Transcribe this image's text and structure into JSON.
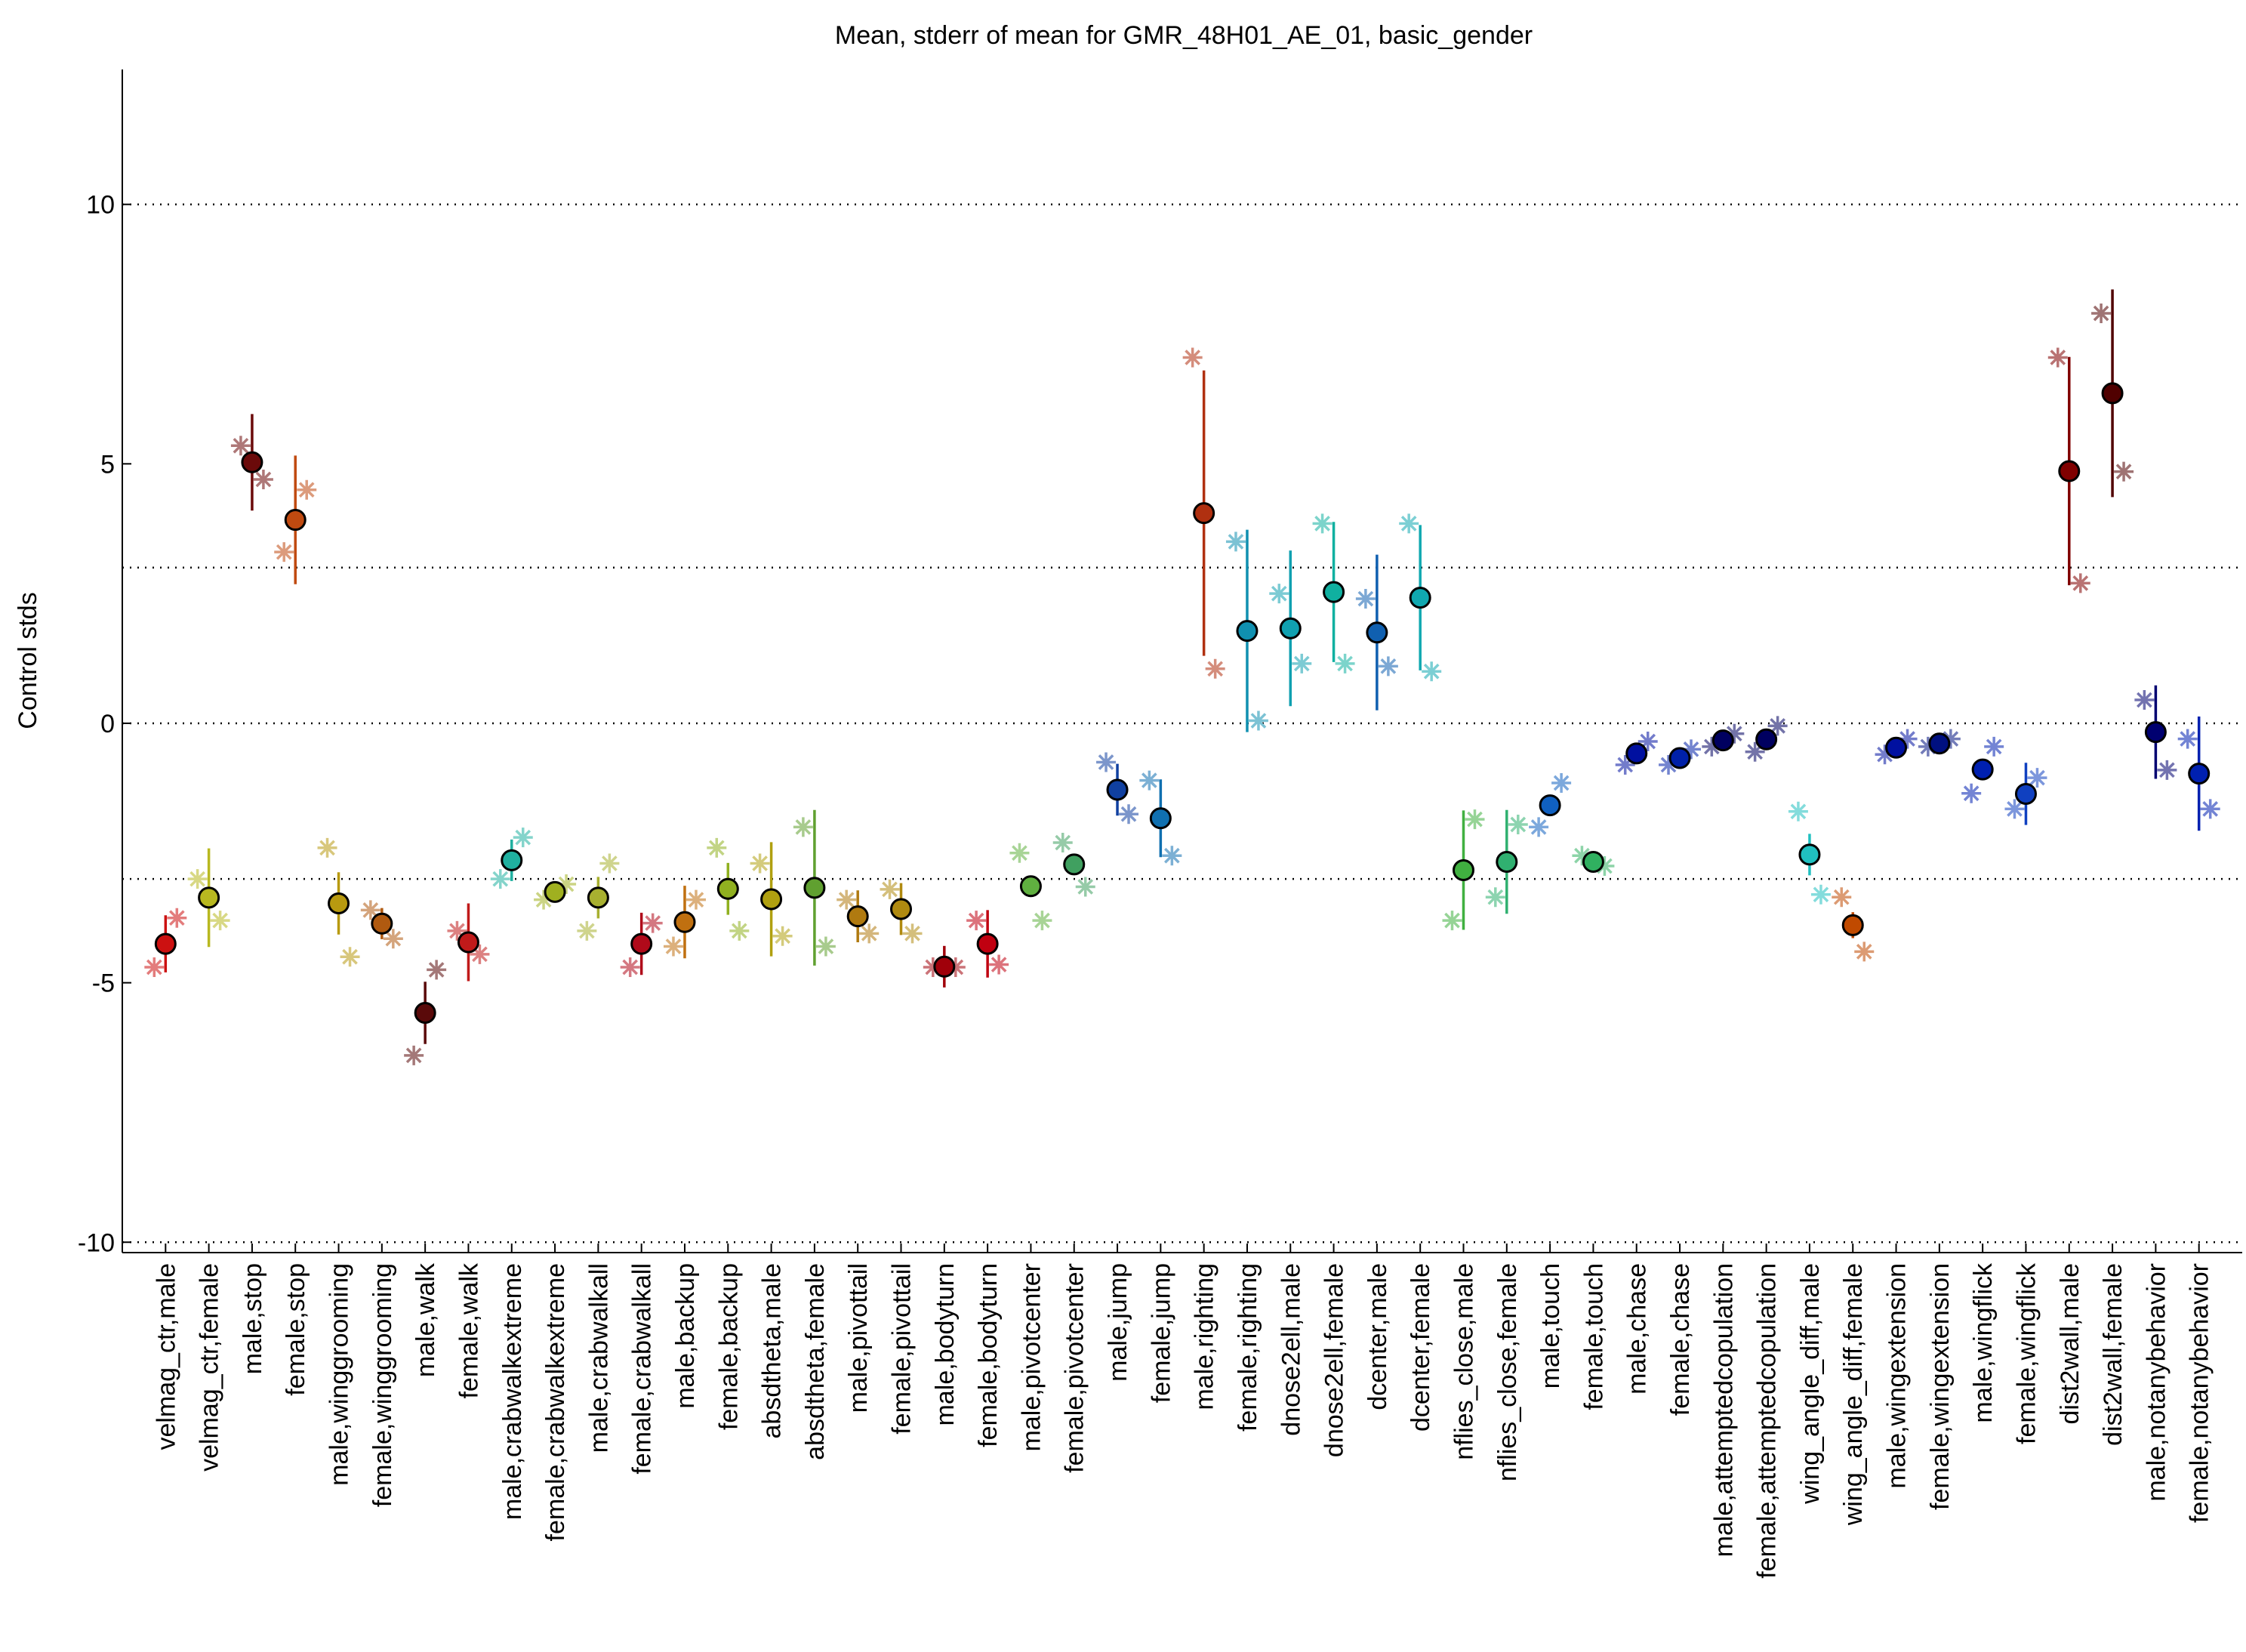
{
  "chart_data": {
    "type": "errorbar",
    "title": "Mean, stderr of mean for GMR_48H01_AE_01, basic_gender",
    "ylabel": "Control stds",
    "categories": [
      "velmag_ctr,male",
      "velmag_ctr,female",
      "male,stop",
      "female,stop",
      "male,winggrooming",
      "female,winggrooming",
      "male,walk",
      "female,walk",
      "male,crabwalkextreme",
      "female,crabwalkextreme",
      "male,crabwalkall",
      "female,crabwalkall",
      "male,backup",
      "female,backup",
      "absdtheta,male",
      "absdtheta,female",
      "male,pivottail",
      "female,pivottail",
      "male,bodyturn",
      "female,bodyturn",
      "male,pivotcenter",
      "female,pivotcenter",
      "male,jump",
      "female,jump",
      "male,righting",
      "female,righting",
      "dnose2ell,male",
      "dnose2ell,female",
      "dcenter,male",
      "dcenter,female",
      "nflies_close,male",
      "nflies_close,female",
      "male,touch",
      "female,touch",
      "male,chase",
      "female,chase",
      "male,attemptedcopulation",
      "female,attemptedcopulation",
      "wing_angle_diff,male",
      "wing_angle_diff,female",
      "male,wingextension",
      "female,wingextension",
      "male,wingflick",
      "female,wingflick",
      "dist2wall,male",
      "dist2wall,female",
      "male,notanybehavior",
      "female,notanybehavior"
    ],
    "colors": [
      "#cc1111",
      "#b8b820",
      "#6b0a0a",
      "#c04a10",
      "#b89a10",
      "#b05a10",
      "#5a0a0a",
      "#c01a1a",
      "#20b0a0",
      "#a0b020",
      "#a8b030",
      "#b00a1a",
      "#c07010",
      "#90b020",
      "#b0a010",
      "#60a030",
      "#b07a10",
      "#b08a10",
      "#a0000a",
      "#c00010",
      "#60b040",
      "#40a060",
      "#1040a0",
      "#1070b0",
      "#b03010",
      "#1090b0",
      "#10a0b0",
      "#10b0a0",
      "#1060b0",
      "#10a8b0",
      "#40b040",
      "#30b070",
      "#1060c0",
      "#30b060",
      "#0010a0",
      "#0020a8",
      "#000060",
      "#000060",
      "#20c0c0",
      "#c04a00",
      "#0010a0",
      "#001080",
      "#0020b0",
      "#1040c0",
      "#800000",
      "#500000",
      "#000070",
      "#0020b0"
    ],
    "values": [
      -4.25,
      -3.36,
      5.03,
      3.92,
      -3.47,
      -3.86,
      -5.58,
      -4.22,
      -2.64,
      -3.25,
      -3.36,
      -4.25,
      -3.83,
      -3.19,
      -3.39,
      -3.17,
      -3.72,
      -3.58,
      -4.69,
      -4.25,
      -3.14,
      -2.72,
      -1.28,
      -1.83,
      4.05,
      1.78,
      1.83,
      2.53,
      1.75,
      2.42,
      -2.83,
      -2.67,
      -1.58,
      -2.67,
      -0.58,
      -0.67,
      -0.33,
      -0.31,
      -2.53,
      -3.89,
      -0.47,
      -0.39,
      -0.89,
      -1.36,
      4.86,
      6.36,
      -0.17,
      -0.97
    ],
    "errors": [
      0.55,
      0.95,
      0.93,
      1.24,
      0.6,
      0.3,
      0.6,
      0.75,
      0.4,
      0.1,
      0.4,
      0.6,
      0.7,
      0.5,
      1.1,
      1.5,
      0.5,
      0.5,
      0.4,
      0.65,
      0.05,
      0.05,
      0.5,
      0.75,
      2.75,
      1.95,
      1.5,
      1.35,
      1.5,
      1.4,
      1.15,
      1.0,
      0.2,
      0.1,
      0.05,
      0.05,
      0.05,
      0.05,
      0.4,
      0.25,
      0.05,
      0.05,
      0.1,
      0.6,
      2.2,
      2.0,
      0.9,
      1.1
    ],
    "subgroups": [
      {
        "values": [
          -4.7,
          -3.0,
          5.35,
          3.3,
          -2.4,
          -3.6,
          -6.4,
          -4.0,
          -3.0,
          -3.4,
          -4.0,
          -4.7,
          -4.3,
          -2.4,
          -2.7,
          -2.0,
          -3.4,
          -3.2,
          -4.7,
          -3.8,
          -2.5,
          -2.3,
          -0.75,
          -1.1,
          7.05,
          3.5,
          2.5,
          3.85,
          2.4,
          3.85,
          -3.8,
          -3.35,
          -2.0,
          -2.55,
          -0.8,
          -0.8,
          -0.45,
          -0.55,
          -1.7,
          -3.35,
          -0.6,
          -0.45,
          -1.35,
          -1.65,
          7.05,
          7.9,
          0.45,
          -0.3
        ]
      },
      {
        "values": [
          -3.75,
          -3.8,
          4.7,
          4.5,
          -4.5,
          -4.15,
          -4.75,
          -4.45,
          -2.2,
          -3.1,
          -2.7,
          -3.85,
          -3.4,
          -4.0,
          -4.1,
          -4.3,
          -4.05,
          -4.05,
          -4.7,
          -4.65,
          -3.8,
          -3.15,
          -1.75,
          -2.55,
          1.05,
          0.05,
          1.15,
          1.15,
          1.1,
          1.0,
          -1.85,
          -1.95,
          -1.15,
          -2.75,
          -0.35,
          -0.5,
          -0.2,
          -0.05,
          -3.3,
          -4.4,
          -0.3,
          -0.3,
          -0.45,
          -1.05,
          2.7,
          4.85,
          -0.9,
          -1.65
        ]
      }
    ],
    "ylim": [
      -10.2,
      12.6
    ],
    "yticks": [
      -10,
      -5,
      0,
      5,
      10
    ],
    "hlines": [
      -10,
      -3,
      0,
      3,
      10
    ]
  }
}
